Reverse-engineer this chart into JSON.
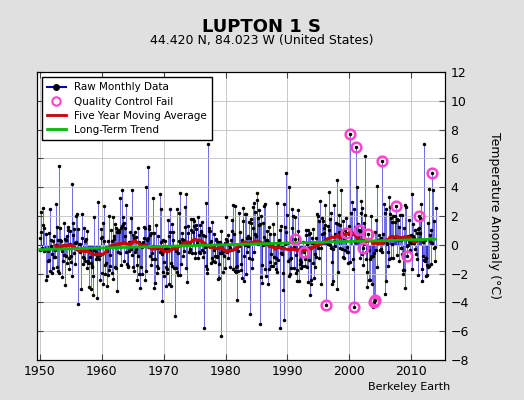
{
  "title": "LUPTON 1 S",
  "subtitle": "44.420 N, 84.023 W (United States)",
  "ylabel": "Temperature Anomaly (°C)",
  "credit": "Berkeley Earth",
  "year_start": 1950,
  "year_end": 2014,
  "ylim": [
    -8,
    12
  ],
  "yticks": [
    -8,
    -6,
    -4,
    -2,
    0,
    2,
    4,
    6,
    8,
    10,
    12
  ],
  "xlim": [
    1949.5,
    2015.5
  ],
  "xticks": [
    1950,
    1960,
    1970,
    1980,
    1990,
    2000,
    2010
  ],
  "raw_color": "#0000cc",
  "ma_color": "#cc0000",
  "trend_color": "#00bb00",
  "qc_color": "#ff44cc",
  "bg_color": "#e0e0e0",
  "plot_bg_color": "#ffffff",
  "grid_color": "#c0c0c0",
  "seed": 42,
  "noise_scale": 1.5,
  "window": 60
}
